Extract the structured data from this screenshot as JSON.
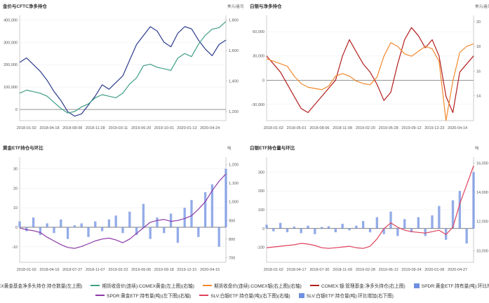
{
  "chart_data": [
    {
      "type": "line",
      "title": "金价与CFTC净多持仓",
      "y_left_unit": "",
      "y_right_unit": "美元/盎司",
      "x_ticks": [
        "2018-01-02",
        "2018-04-18",
        "2018-08-08",
        "2018-11-28",
        "2019-03-11",
        "2019-06-20",
        "2019-10-01",
        "2020-01-13",
        "2020-04-24"
      ],
      "y_left_ticks": [
        "400,000",
        "300,000",
        "200,000",
        "100,000",
        "0"
      ],
      "y_left_range": [
        -50000,
        420000
      ],
      "y_right_ticks": [
        "1,800",
        "1,600",
        "1,400",
        "1,200"
      ],
      "y_right_range": [
        1140,
        1830
      ],
      "series": [
        {
          "name": "COMEX黄金基金净多头持仓:持仓数量(左上图)",
          "axis": "left",
          "color": "#2d3c8c",
          "values": [
            210000,
            230000,
            200000,
            170000,
            130000,
            80000,
            40000,
            -10000,
            -30000,
            -20000,
            20000,
            60000,
            110000,
            90000,
            120000,
            150000,
            220000,
            290000,
            330000,
            370000,
            350000,
            300000,
            280000,
            340000,
            370000,
            360000,
            310000,
            270000,
            240000,
            290000,
            310000
          ]
        },
        {
          "name": "期货收盘价(连续):COMEX黄金(左上图)(右轴)",
          "axis": "right",
          "color": "#3f9e86",
          "values": [
            1320,
            1340,
            1330,
            1320,
            1300,
            1260,
            1220,
            1190,
            1200,
            1230,
            1250,
            1290,
            1310,
            1300,
            1290,
            1320,
            1380,
            1420,
            1500,
            1510,
            1490,
            1480,
            1470,
            1550,
            1580,
            1560,
            1640,
            1700,
            1740,
            1750,
            1790
          ]
        }
      ]
    },
    {
      "type": "line",
      "title": "白银与净多持仓",
      "y_left_unit": "",
      "y_right_unit": "美元/盎司",
      "x_ticks": [
        "2018-01-02",
        "2018-05-01",
        "2018-08-06",
        "2018-11-08",
        "2019-02-20",
        "2019-05-28",
        "2019-09-12",
        "2019-12-23",
        "2020-04-14"
      ],
      "y_left_ticks": [
        "60,000",
        "30,000",
        "0",
        "-30,000"
      ],
      "y_left_range": [
        -50000,
        80000
      ],
      "y_right_ticks": [
        "20",
        "18",
        "16",
        "14"
      ],
      "y_right_range": [
        12,
        20.5
      ],
      "series": [
        {
          "name": "COMEX:银:管理基金:净多头持仓(右上图)",
          "axis": "left",
          "color": "#b41e1e",
          "values": [
            30000,
            20000,
            10000,
            -5000,
            -20000,
            -35000,
            -40000,
            -30000,
            -20000,
            -10000,
            0,
            30000,
            50000,
            35000,
            20000,
            10000,
            -5000,
            -25000,
            -15000,
            20000,
            50000,
            65000,
            55000,
            40000,
            50000,
            30000,
            -20000,
            -40000,
            10000,
            20000,
            30000
          ]
        },
        {
          "name": "期货收盘价(连续):COMEX银(右上图)(右轴)",
          "axis": "right",
          "color": "#f28a2e",
          "values": [
            17.0,
            16.8,
            16.6,
            16.4,
            15.6,
            15.0,
            14.7,
            14.6,
            14.5,
            14.8,
            15.6,
            15.8,
            15.6,
            15.2,
            15.0,
            14.9,
            15.5,
            17.2,
            18.3,
            18.0,
            17.4,
            17.2,
            17.6,
            18.0,
            17.8,
            16.8,
            12.0,
            15.2,
            17.5,
            18.0,
            18.2
          ]
        }
      ]
    },
    {
      "type": "bar",
      "title": "黄金ETF持仓与环比",
      "y_left_unit": "",
      "y_right_unit": "吨",
      "x_ticks": [
        "2018-01-02",
        "2018-04-16",
        "2018-07-27",
        "2018-11-07",
        "2019-02-22",
        "2019-06-06",
        "2019-09-18",
        "2019-12-31",
        "2020-04-15"
      ],
      "y_left_ticks": [
        "30",
        "20",
        "10",
        "0",
        "-10"
      ],
      "y_left_range": [
        -18,
        36
      ],
      "y_right_ticks": [
        "1,200",
        "1,100",
        "1,000",
        "900",
        "800",
        "700"
      ],
      "y_right_range": [
        675,
        1240
      ],
      "series": [
        {
          "name": "SPDR:黄金ETF:持有量(吨):环比增加(左下图)",
          "axis": "left",
          "color": "#6f8fe0",
          "values": [
            3,
            -2,
            5,
            -4,
            2,
            -3,
            4,
            -6,
            1,
            2,
            -5,
            3,
            -2,
            4,
            6,
            -3,
            8,
            -4,
            12,
            -6,
            5,
            -3,
            7,
            -8,
            10,
            14,
            -5,
            18,
            22,
            -10,
            30
          ]
        },
        {
          "name": "SPDR:黄金ETF:持有量(吨)(左下图)(右轴)",
          "axis": "right",
          "color": "#8c3aa8",
          "values": [
            860,
            850,
            845,
            835,
            810,
            790,
            770,
            755,
            750,
            760,
            775,
            790,
            800,
            805,
            795,
            780,
            800,
            830,
            860,
            890,
            900,
            905,
            895,
            900,
            910,
            925,
            960,
            1000,
            1060,
            1110,
            1150
          ]
        }
      ]
    },
    {
      "type": "bar",
      "title": "白银ETF持仓量与环比",
      "y_left_unit": "",
      "y_right_unit": "吨",
      "x_ticks": [
        "2018-01-02",
        "2018-04-17",
        "2018-07-30",
        "2018-11-09",
        "2019-02-28",
        "2019-06-12",
        "2019-09-24",
        "2020-01-08",
        "2020-04-27"
      ],
      "y_left_ticks": [
        "300",
        "200",
        "100",
        "0",
        "-100"
      ],
      "y_left_range": [
        -180,
        380
      ],
      "y_right_ticks": [
        "16,000",
        "14,000",
        "12,000",
        "10,000"
      ],
      "y_right_range": [
        9200,
        16400
      ],
      "series": [
        {
          "name": "SLV:白银ETF:持仓量(吨):环比增加(右下图)",
          "axis": "left",
          "color": "#6f8fe0",
          "values": [
            20,
            -15,
            30,
            -20,
            10,
            -25,
            15,
            -30,
            8,
            12,
            -20,
            25,
            -10,
            15,
            40,
            -20,
            60,
            -30,
            90,
            -40,
            50,
            -20,
            60,
            -40,
            70,
            120,
            -60,
            150,
            200,
            -80,
            300
          ]
        },
        {
          "name": "SLV:白银ETF:持仓量(吨)(右下图)(右轴)",
          "axis": "right",
          "color": "#e0405a",
          "values": [
            10200,
            10250,
            10300,
            10350,
            10400,
            10500,
            10450,
            10350,
            10200,
            10150,
            10200,
            10250,
            10300,
            10200,
            10150,
            10300,
            10800,
            11500,
            11900,
            11600,
            11400,
            11300,
            11250,
            11200,
            11300,
            11400,
            11100,
            11600,
            13200,
            14500,
            15800
          ]
        }
      ]
    }
  ],
  "legend": {
    "row1": [
      {
        "label": "COMEX黄金基金净多头持仓:持仓数量(左上图)",
        "color": "#2d3c8c",
        "kind": "line"
      },
      {
        "label": "期货收盘价(连续):COMEX黄金(左上图)(右轴)",
        "color": "#3f9e86",
        "kind": "line"
      },
      {
        "label": "期货收盘价(连续):COMEX银(右上图)(右轴)",
        "color": "#f28a2e",
        "kind": "line"
      },
      {
        "label": "COMEX:银:管理基金:净多头持仓(右上图)",
        "color": "#b41e1e",
        "kind": "line"
      },
      {
        "label": "SPDR:黄金ETF:持有量(吨):环比增加(左下图)",
        "color": "#6f8fe0",
        "kind": "bar"
      }
    ],
    "row2": [
      {
        "label": "SPDR:黄金ETF:持有量(吨)(左下图)(右轴)",
        "color": "#8c3aa8",
        "kind": "line"
      },
      {
        "label": "SLV:白银ETF:持仓量(吨)(右下图)(右轴)",
        "color": "#e0405a",
        "kind": "line"
      },
      {
        "label": "SLV:白银ETF:持仓量(吨):环比增加(右下图)",
        "color": "#6f8fe0",
        "kind": "bar"
      }
    ]
  }
}
